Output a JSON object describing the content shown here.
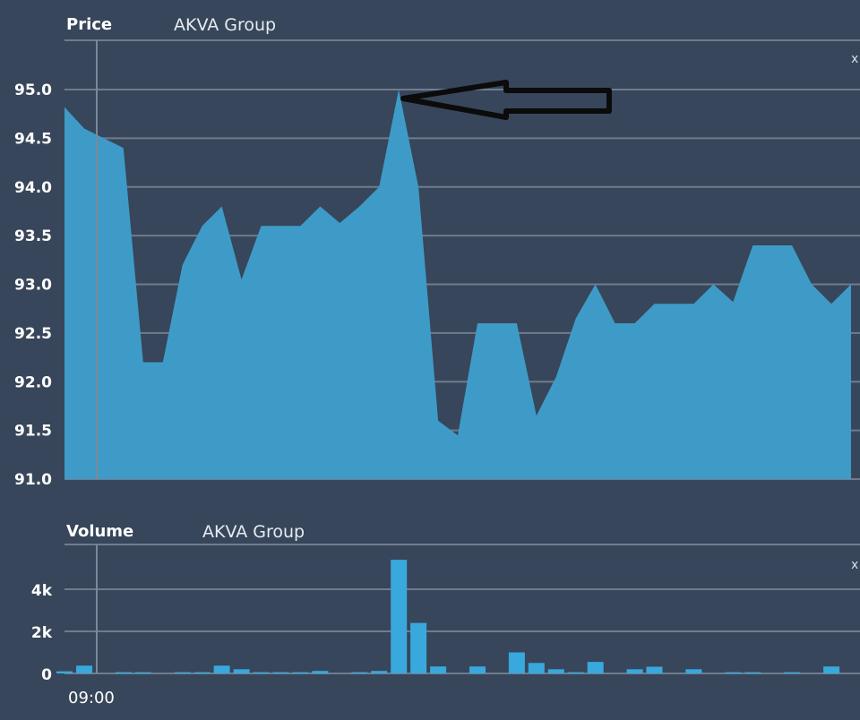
{
  "price_panel": {
    "title": "Price",
    "subtitle": "AKVA Group"
  },
  "volume_panel": {
    "title": "Volume",
    "subtitle": "AKVA Group"
  },
  "edge_marker": "x",
  "colors": {
    "background": "#37465a",
    "area_fill": "#3e9bc8",
    "bar_fill": "#39a8dd",
    "arrow": "#0b0b0b"
  },
  "chart_data": [
    {
      "type": "area",
      "title": "Price",
      "subtitle": "AKVA Group",
      "ylim": [
        91.0,
        95.4
      ],
      "yticks": [
        "91.0",
        "91.5",
        "92.0",
        "92.5",
        "93.0",
        "93.5",
        "94.0",
        "94.5",
        "95.0"
      ],
      "grid": true,
      "annotation": "arrow pointing to the intraday high",
      "series": [
        {
          "values": [
            94.82,
            94.6,
            94.5,
            94.4,
            92.2,
            92.2,
            93.2,
            93.6,
            93.8,
            93.05,
            93.6,
            93.6,
            93.6,
            93.8,
            93.63,
            93.8,
            94.0,
            95.0,
            94.0,
            91.6,
            91.45,
            92.6,
            92.6,
            92.6,
            91.65,
            92.05,
            92.65,
            93.0,
            92.6,
            92.6,
            92.8,
            92.8,
            92.8,
            93.0,
            92.82,
            93.4,
            93.4,
            93.4,
            93.0,
            92.8,
            93.0
          ]
        }
      ]
    },
    {
      "type": "bar",
      "title": "Volume",
      "subtitle": "AKVA Group",
      "ylim": [
        0,
        5800
      ],
      "yticks": [
        "0",
        "2k",
        "4k"
      ],
      "x_tick_labels": [
        "09:00"
      ],
      "grid": true,
      "series": [
        {
          "values": [
            100,
            370,
            0,
            60,
            60,
            0,
            60,
            60,
            370,
            200,
            60,
            60,
            60,
            120,
            0,
            60,
            120,
            5400,
            2400,
            330,
            0,
            330,
            0,
            1000,
            500,
            200,
            60,
            550,
            0,
            200,
            320,
            0,
            200,
            0,
            60,
            60,
            0,
            60,
            0,
            330,
            0
          ]
        }
      ]
    }
  ]
}
